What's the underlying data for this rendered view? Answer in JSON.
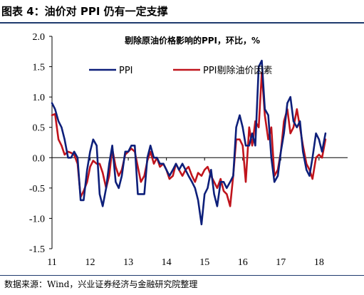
{
  "figure_title": "图表 4：油价对 PPI 仍有一定支撑",
  "source_note": "数据来源：Wind，兴业证券经济与金融研究院整理",
  "colors": {
    "ppi": "#0d1f7a",
    "ppi_ex_oil": "#c0141c",
    "rule": "#1f3a6e"
  },
  "chart_data": {
    "type": "line",
    "title": "剔除原油价格影响的PPI，环比，%",
    "xlabel": "",
    "ylabel": "",
    "ylim": [
      -1.5,
      2.0
    ],
    "yticks": [
      "2.0",
      "1.5",
      "1.0",
      "0.5",
      "0.0",
      "-0.5",
      "-1.0",
      "-1.5"
    ],
    "ytick_values": [
      2.0,
      1.5,
      1.0,
      0.5,
      0.0,
      -0.5,
      -1.0,
      -1.5
    ],
    "xticks": [
      "11",
      "12",
      "13",
      "14",
      "15",
      "16",
      "17",
      "18"
    ],
    "xtick_values": [
      2011,
      2012,
      2013,
      2014,
      2015,
      2016,
      2017,
      2018
    ],
    "xlim": [
      2011,
      2018.75
    ],
    "grid": false,
    "legend_position": "top-center",
    "series": [
      {
        "name": "PPI",
        "color": "#0d1f7a",
        "points": [
          [
            2011.0,
            0.9
          ],
          [
            2011.08,
            0.8
          ],
          [
            2011.17,
            0.6
          ],
          [
            2011.25,
            0.5
          ],
          [
            2011.33,
            0.3
          ],
          [
            2011.42,
            0.0
          ],
          [
            2011.5,
            0.0
          ],
          [
            2011.58,
            0.1
          ],
          [
            2011.67,
            0.0
          ],
          [
            2011.75,
            -0.7
          ],
          [
            2011.83,
            -0.7
          ],
          [
            2011.92,
            -0.2
          ],
          [
            2012.0,
            0.1
          ],
          [
            2012.08,
            0.3
          ],
          [
            2012.17,
            0.2
          ],
          [
            2012.25,
            -0.6
          ],
          [
            2012.33,
            -0.8
          ],
          [
            2012.42,
            -0.5
          ],
          [
            2012.5,
            -0.1
          ],
          [
            2012.58,
            0.2
          ],
          [
            2012.67,
            -0.4
          ],
          [
            2012.75,
            -0.5
          ],
          [
            2012.83,
            -0.3
          ],
          [
            2012.92,
            0.1
          ],
          [
            2013.0,
            0.1
          ],
          [
            2013.08,
            0.2
          ],
          [
            2013.17,
            0.2
          ],
          [
            2013.25,
            -0.6
          ],
          [
            2013.33,
            -0.6
          ],
          [
            2013.42,
            -0.6
          ],
          [
            2013.5,
            0.0
          ],
          [
            2013.58,
            0.2
          ],
          [
            2013.67,
            0.0
          ],
          [
            2013.75,
            0.0
          ],
          [
            2013.83,
            -0.1
          ],
          [
            2013.92,
            -0.1
          ],
          [
            2014.0,
            -0.2
          ],
          [
            2014.08,
            -0.3
          ],
          [
            2014.17,
            -0.2
          ],
          [
            2014.25,
            -0.1
          ],
          [
            2014.33,
            -0.2
          ],
          [
            2014.42,
            -0.1
          ],
          [
            2014.5,
            -0.2
          ],
          [
            2014.58,
            -0.3
          ],
          [
            2014.67,
            -0.4
          ],
          [
            2014.75,
            -0.5
          ],
          [
            2014.83,
            -0.7
          ],
          [
            2014.92,
            -1.1
          ],
          [
            2015.0,
            -0.6
          ],
          [
            2015.08,
            -0.5
          ],
          [
            2015.17,
            -0.2
          ],
          [
            2015.25,
            -0.6
          ],
          [
            2015.33,
            -0.8
          ],
          [
            2015.42,
            -0.4
          ],
          [
            2015.5,
            -0.4
          ],
          [
            2015.58,
            -0.5
          ],
          [
            2015.67,
            -0.4
          ],
          [
            2015.75,
            -0.3
          ],
          [
            2015.83,
            0.5
          ],
          [
            2015.92,
            0.7
          ],
          [
            2016.0,
            0.5
          ],
          [
            2016.08,
            0.2
          ],
          [
            2016.17,
            0.2
          ],
          [
            2016.25,
            0.4
          ],
          [
            2016.33,
            0.2
          ],
          [
            2016.42,
            1.5
          ],
          [
            2016.5,
            1.6
          ],
          [
            2016.58,
            0.8
          ],
          [
            2016.67,
            0.7
          ],
          [
            2016.75,
            0.0
          ],
          [
            2016.83,
            -0.4
          ],
          [
            2016.92,
            -0.3
          ],
          [
            2017.0,
            0.1
          ],
          [
            2017.08,
            0.4
          ],
          [
            2017.17,
            0.9
          ],
          [
            2017.25,
            1.0
          ],
          [
            2017.33,
            0.6
          ],
          [
            2017.42,
            0.5
          ],
          [
            2017.5,
            0.6
          ],
          [
            2017.58,
            0.1
          ],
          [
            2017.67,
            -0.2
          ],
          [
            2017.75,
            -0.3
          ],
          [
            2017.83,
            0.0
          ],
          [
            2017.92,
            0.4
          ],
          [
            2018.0,
            0.3
          ],
          [
            2018.08,
            0.1
          ],
          [
            2018.17,
            0.4
          ]
        ]
      },
      {
        "name": "PPI剔除油价因素",
        "color": "#c0141c",
        "points": [
          [
            2011.0,
            0.7
          ],
          [
            2011.08,
            0.72
          ],
          [
            2011.17,
            0.3
          ],
          [
            2011.25,
            0.2
          ],
          [
            2011.33,
            0.05
          ],
          [
            2011.42,
            0.1
          ],
          [
            2011.5,
            0.08
          ],
          [
            2011.58,
            0.05
          ],
          [
            2011.67,
            -0.1
          ],
          [
            2011.75,
            -0.65
          ],
          [
            2011.83,
            -0.55
          ],
          [
            2011.92,
            -0.4
          ],
          [
            2012.0,
            -0.15
          ],
          [
            2012.08,
            -0.05
          ],
          [
            2012.17,
            -0.1
          ],
          [
            2012.25,
            -0.1
          ],
          [
            2012.33,
            -0.25
          ],
          [
            2012.42,
            -0.5
          ],
          [
            2012.5,
            -0.3
          ],
          [
            2012.58,
            0.15
          ],
          [
            2012.67,
            -0.15
          ],
          [
            2012.75,
            -0.3
          ],
          [
            2012.83,
            -0.2
          ],
          [
            2012.92,
            0.05
          ],
          [
            2013.0,
            0.1
          ],
          [
            2013.08,
            0.15
          ],
          [
            2013.17,
            0.1
          ],
          [
            2013.25,
            -0.15
          ],
          [
            2013.33,
            -0.4
          ],
          [
            2013.42,
            -0.3
          ],
          [
            2013.5,
            -0.05
          ],
          [
            2013.58,
            0.1
          ],
          [
            2013.67,
            -0.1
          ],
          [
            2013.75,
            0.0
          ],
          [
            2013.83,
            -0.15
          ],
          [
            2013.92,
            -0.1
          ],
          [
            2014.0,
            -0.2
          ],
          [
            2014.08,
            -0.35
          ],
          [
            2014.17,
            -0.3
          ],
          [
            2014.25,
            -0.1
          ],
          [
            2014.33,
            -0.2
          ],
          [
            2014.42,
            -0.3
          ],
          [
            2014.5,
            -0.2
          ],
          [
            2014.58,
            -0.15
          ],
          [
            2014.67,
            -0.3
          ],
          [
            2014.75,
            -0.4
          ],
          [
            2014.83,
            -0.25
          ],
          [
            2014.92,
            -0.3
          ],
          [
            2015.0,
            -0.2
          ],
          [
            2015.08,
            -0.15
          ],
          [
            2015.17,
            -0.3
          ],
          [
            2015.25,
            -0.4
          ],
          [
            2015.33,
            -0.5
          ],
          [
            2015.42,
            -0.35
          ],
          [
            2015.5,
            -0.55
          ],
          [
            2015.58,
            -0.6
          ],
          [
            2015.67,
            -0.8
          ],
          [
            2015.75,
            -0.3
          ],
          [
            2015.83,
            0.3
          ],
          [
            2015.92,
            0.3
          ],
          [
            2016.0,
            0.2
          ],
          [
            2016.08,
            -0.4
          ],
          [
            2016.17,
            0.5
          ],
          [
            2016.25,
            0.2
          ],
          [
            2016.33,
            0.6
          ],
          [
            2016.42,
            0.5
          ],
          [
            2016.5,
            1.4
          ],
          [
            2016.58,
            0.7
          ],
          [
            2016.67,
            0.3
          ],
          [
            2016.75,
            0.5
          ],
          [
            2016.83,
            -0.3
          ],
          [
            2016.92,
            -0.2
          ],
          [
            2017.0,
            0.1
          ],
          [
            2017.08,
            0.6
          ],
          [
            2017.17,
            0.8
          ],
          [
            2017.25,
            0.4
          ],
          [
            2017.33,
            0.5
          ],
          [
            2017.42,
            0.8
          ],
          [
            2017.5,
            0.5
          ],
          [
            2017.58,
            0.2
          ],
          [
            2017.67,
            -0.1
          ],
          [
            2017.75,
            -0.2
          ],
          [
            2017.83,
            -0.35
          ],
          [
            2017.92,
            0.0
          ],
          [
            2018.0,
            0.05
          ],
          [
            2018.08,
            0.0
          ],
          [
            2018.17,
            0.3
          ]
        ]
      }
    ]
  }
}
